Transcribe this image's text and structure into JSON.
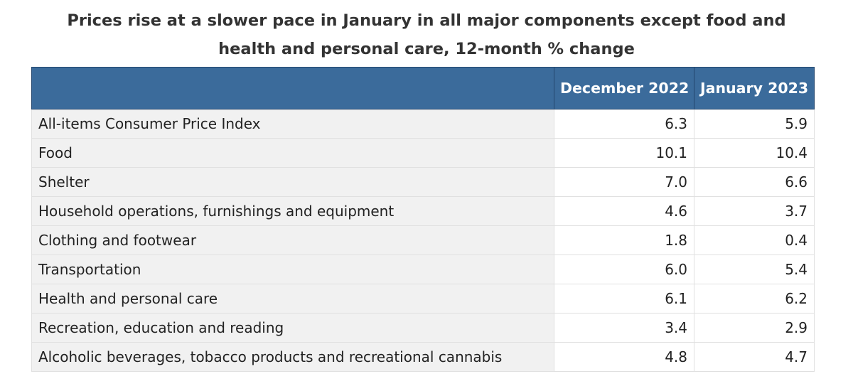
{
  "chart_data": {
    "type": "table",
    "title_line1": "Prices rise at a slower pace in January in all major components except food and",
    "title_line2": "health and personal care, 12-month % change",
    "corner_header": "",
    "columns": [
      "December 2022",
      "January 2023"
    ],
    "rows": [
      {
        "label": "All-items Consumer Price Index",
        "values": [
          "6.3",
          "5.9"
        ]
      },
      {
        "label": "Food",
        "values": [
          "10.1",
          "10.4"
        ]
      },
      {
        "label": "Shelter",
        "values": [
          "7.0",
          "6.6"
        ]
      },
      {
        "label": "Household operations, furnishings and equipment",
        "values": [
          "4.6",
          "3.7"
        ]
      },
      {
        "label": "Clothing and footwear",
        "values": [
          "1.8",
          "0.4"
        ]
      },
      {
        "label": "Transportation",
        "values": [
          "6.0",
          "5.4"
        ]
      },
      {
        "label": "Health and personal care",
        "values": [
          "6.1",
          "6.2"
        ]
      },
      {
        "label": "Recreation, education and reading",
        "values": [
          "3.4",
          "2.9"
        ]
      },
      {
        "label": "Alcoholic beverages, tobacco products and recreational cannabis",
        "values": [
          "4.8",
          "4.7"
        ]
      }
    ]
  },
  "colors": {
    "header_background": "#3b6b9b",
    "header_text": "#ffffff",
    "label_cell_background": "#f1f1f1",
    "value_cell_background": "#ffffff"
  }
}
